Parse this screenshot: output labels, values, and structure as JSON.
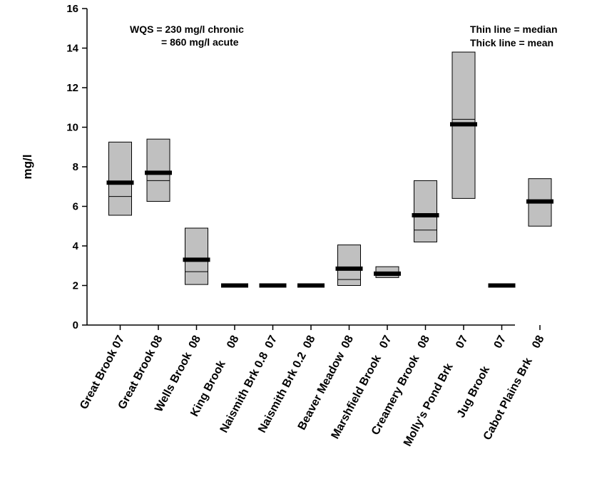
{
  "annotations": {
    "wqs_line1": "WQS = 230 mg/l chronic",
    "wqs_line2": "= 860 mg/l  acute",
    "legend_line1": "Thin line = median",
    "legend_line2": "Thick line = mean"
  },
  "colors": {
    "box_fill": "#c0c0c0",
    "box_stroke": "#000000",
    "mean_line": "#000000"
  },
  "chart_data": {
    "type": "box",
    "title": "",
    "xlabel": "",
    "ylabel": "mg/l",
    "ylim": [
      0,
      16
    ],
    "yticks": [
      0,
      2,
      4,
      6,
      8,
      10,
      12,
      14,
      16
    ],
    "grid": false,
    "categories": [
      "Great Brook 07",
      "Great Brook 08",
      "Wells Brook  08",
      "King Brook     08",
      "Naismith Brk 0.8  07",
      "Naismith Brk 0.2  08",
      "Beaver Meadow  08",
      "Marshfield Brook   07",
      "Creamery Brook   08",
      "Molly's Pond Brk      07",
      "Jug Brook       07",
      "Cabot Plains Brk    08"
    ],
    "series": [
      {
        "low": [
          5.55,
          6.25,
          2.05,
          2.0,
          2.0,
          2.0,
          2.0,
          2.4,
          4.2,
          6.4,
          2.0,
          5.0
        ],
        "high": [
          9.25,
          9.4,
          4.9,
          2.0,
          2.0,
          2.0,
          4.05,
          2.95,
          7.3,
          13.8,
          2.0,
          7.4
        ],
        "median": [
          6.5,
          7.3,
          2.7,
          2.0,
          2.0,
          2.0,
          2.3,
          2.5,
          4.8,
          10.4,
          2.0,
          6.3
        ],
        "mean": [
          7.2,
          7.7,
          3.3,
          2.0,
          2.0,
          2.0,
          2.85,
          2.6,
          5.55,
          10.15,
          2.0,
          6.25
        ]
      }
    ]
  }
}
